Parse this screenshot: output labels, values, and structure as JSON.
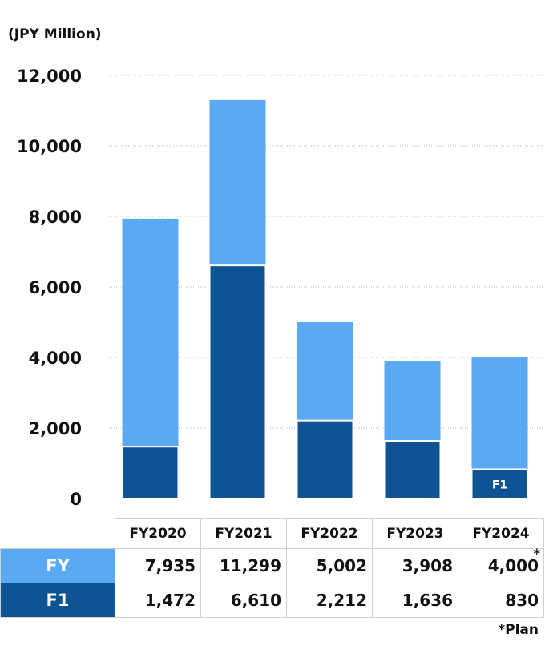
{
  "unit_label": "(JPY Million)",
  "plan_marker": "*",
  "plan_note": "*Plan",
  "colors": {
    "fy": "#5aa9f2",
    "f1": "#0e5394",
    "grid": "#b5b5b5"
  },
  "table": {
    "headers": [
      "FY2020",
      "FY2021",
      "FY2022",
      "FY2023",
      "FY2024"
    ],
    "rows": [
      {
        "label": "FY",
        "values": [
          "7,935",
          "11,299",
          "5,002",
          "3,908",
          "4,000"
        ]
      },
      {
        "label": "F1",
        "values": [
          "1,472",
          "6,610",
          "2,212",
          "1,636",
          "830"
        ]
      }
    ]
  },
  "chart_data": {
    "type": "bar",
    "categories": [
      "FY2020",
      "FY2021",
      "FY2022",
      "FY2023",
      "FY2024"
    ],
    "series": [
      {
        "name": "FY",
        "values": [
          7935,
          11299,
          5002,
          3908,
          4000
        ]
      },
      {
        "name": "F1",
        "values": [
          1472,
          6610,
          2212,
          1636,
          830
        ]
      }
    ],
    "ylabel": "(JPY Million)",
    "ylim": [
      0,
      12000
    ],
    "yticks": [
      0,
      2000,
      4000,
      6000,
      8000,
      10000,
      12000
    ],
    "ytick_labels": [
      "0",
      "2,000",
      "4,000",
      "6,000",
      "8,000",
      "10,000",
      "12,000"
    ],
    "inbar_label": "F1",
    "inbar_label_category": "FY2024",
    "grid": true,
    "overlay": "F1 drawn in front of FY bar"
  }
}
